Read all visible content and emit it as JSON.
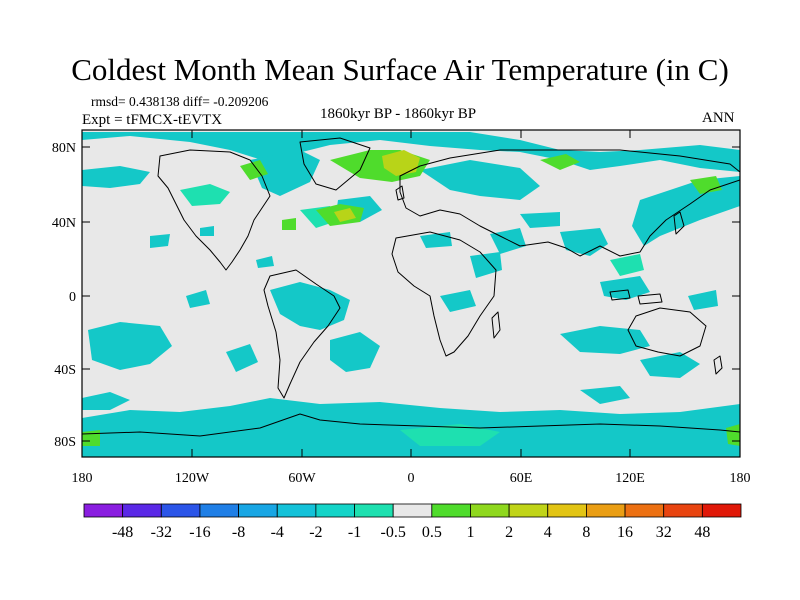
{
  "title": "Coldest Month Mean Surface Air Temperature (in C)",
  "stats": "rmsd= 0.438138 diff= -0.209206",
  "experiment": "Expt = tFMCX-tEVTX",
  "period": "1860kyr BP - 1860kyr BP",
  "season": "ANN",
  "lat_ticks": [
    "80N",
    "40N",
    "0",
    "40S",
    "80S"
  ],
  "lon_ticks": [
    "180",
    "120W",
    "60W",
    "0",
    "60E",
    "120E",
    "180"
  ],
  "colorbar": {
    "labels": [
      "-48",
      "-32",
      "-16",
      "-8",
      "-4",
      "-2",
      "-1",
      "-0.5",
      "0.5",
      "1",
      "2",
      "4",
      "8",
      "16",
      "32",
      "48"
    ],
    "colors": [
      "#8a1ee0",
      "#5a28e6",
      "#2b55e8",
      "#1f7fe6",
      "#18a6e4",
      "#14c2d9",
      "#14d4c8",
      "#1ee0b0",
      "#e8e8e8",
      "#4fdc2c",
      "#8fd81e",
      "#c0d418",
      "#e2c414",
      "#ea9e14",
      "#ec7012",
      "#e84410",
      "#e01808"
    ]
  },
  "map_colors": {
    "background": "#e8e8e8",
    "cyan": "#14c8c8",
    "teal": "#1ee0b0",
    "green": "#4fdc2c",
    "yellowgreen": "#b8d418",
    "coast": "#000000"
  }
}
